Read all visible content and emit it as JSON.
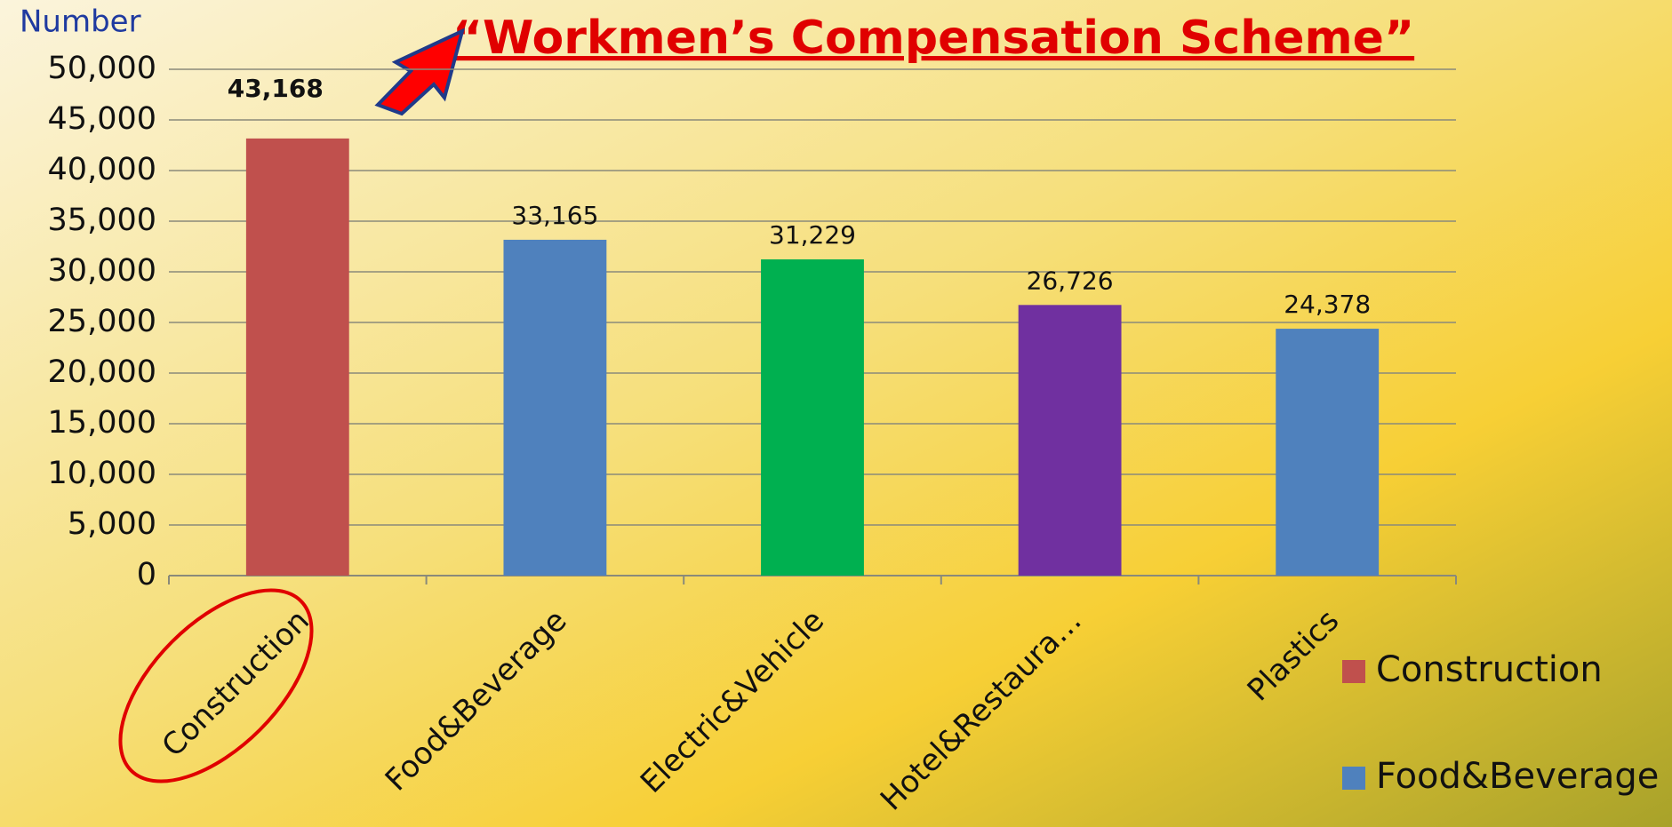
{
  "chart_data": {
    "type": "bar",
    "title": "“Workmen’s Compensation Scheme”",
    "y_label": "Number",
    "categories": [
      "Construction",
      "Food&Beverage",
      "Electric&Vehicle",
      "Hotel&Restaura…",
      "Plastics"
    ],
    "values": [
      43168,
      33165,
      31229,
      26726,
      24378
    ],
    "value_labels": [
      "43,168",
      "33,165",
      "31,229",
      "26,726",
      "24,378"
    ],
    "colors": [
      "#c0504d",
      "#4f81bd",
      "#00b050",
      "#7030a0",
      "#4f81bd"
    ],
    "legend": [
      {
        "name": "Construction",
        "color": "#c0504d"
      },
      {
        "name": "Food&Beverage",
        "color": "#4f81bd"
      }
    ],
    "ylim": [
      0,
      50000
    ],
    "yticks": [
      0,
      {
        "value": 5000,
        "label": "5,000"
      },
      {
        "value": 10000,
        "label": "10,000"
      },
      {
        "value": 15000,
        "label": "15,000"
      },
      {
        "value": 20000,
        "label": "20,000"
      },
      {
        "value": 25000,
        "label": "25,000"
      },
      {
        "value": 30000,
        "label": "30,000"
      },
      {
        "value": 35000,
        "label": "35,000"
      },
      {
        "value": 40000,
        "label": "40,000"
      },
      {
        "value": 45000,
        "label": "45,000"
      },
      {
        "value": 50000,
        "label": "50,000"
      }
    ],
    "grid": true
  }
}
